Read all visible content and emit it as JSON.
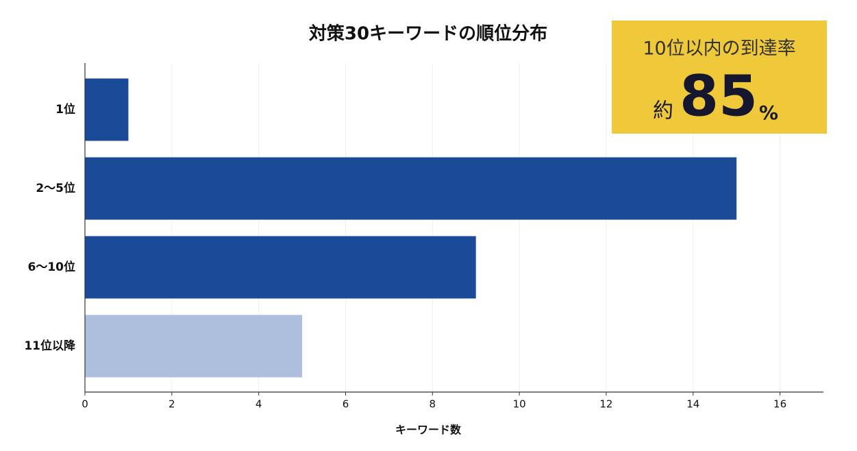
{
  "chart_data": {
    "type": "bar",
    "orientation": "horizontal",
    "title": "対策30キーワードの順位分布",
    "categories": [
      "1位",
      "2〜5位",
      "6〜10位",
      "11位以降"
    ],
    "values": [
      1,
      15,
      9,
      5
    ],
    "colors": [
      "#1b4a98",
      "#1b4a98",
      "#1b4a98",
      "#adbfdc"
    ],
    "xlabel": "キーワード数",
    "xlim": [
      0,
      17
    ],
    "xticks": [
      0,
      2,
      4,
      6,
      8,
      10,
      12,
      14,
      16
    ],
    "grid": true,
    "annotation": {
      "heading": "10位以内の到達率",
      "prefix": "約",
      "value": 85,
      "suffix": "%",
      "color": "#f0c93a"
    }
  }
}
